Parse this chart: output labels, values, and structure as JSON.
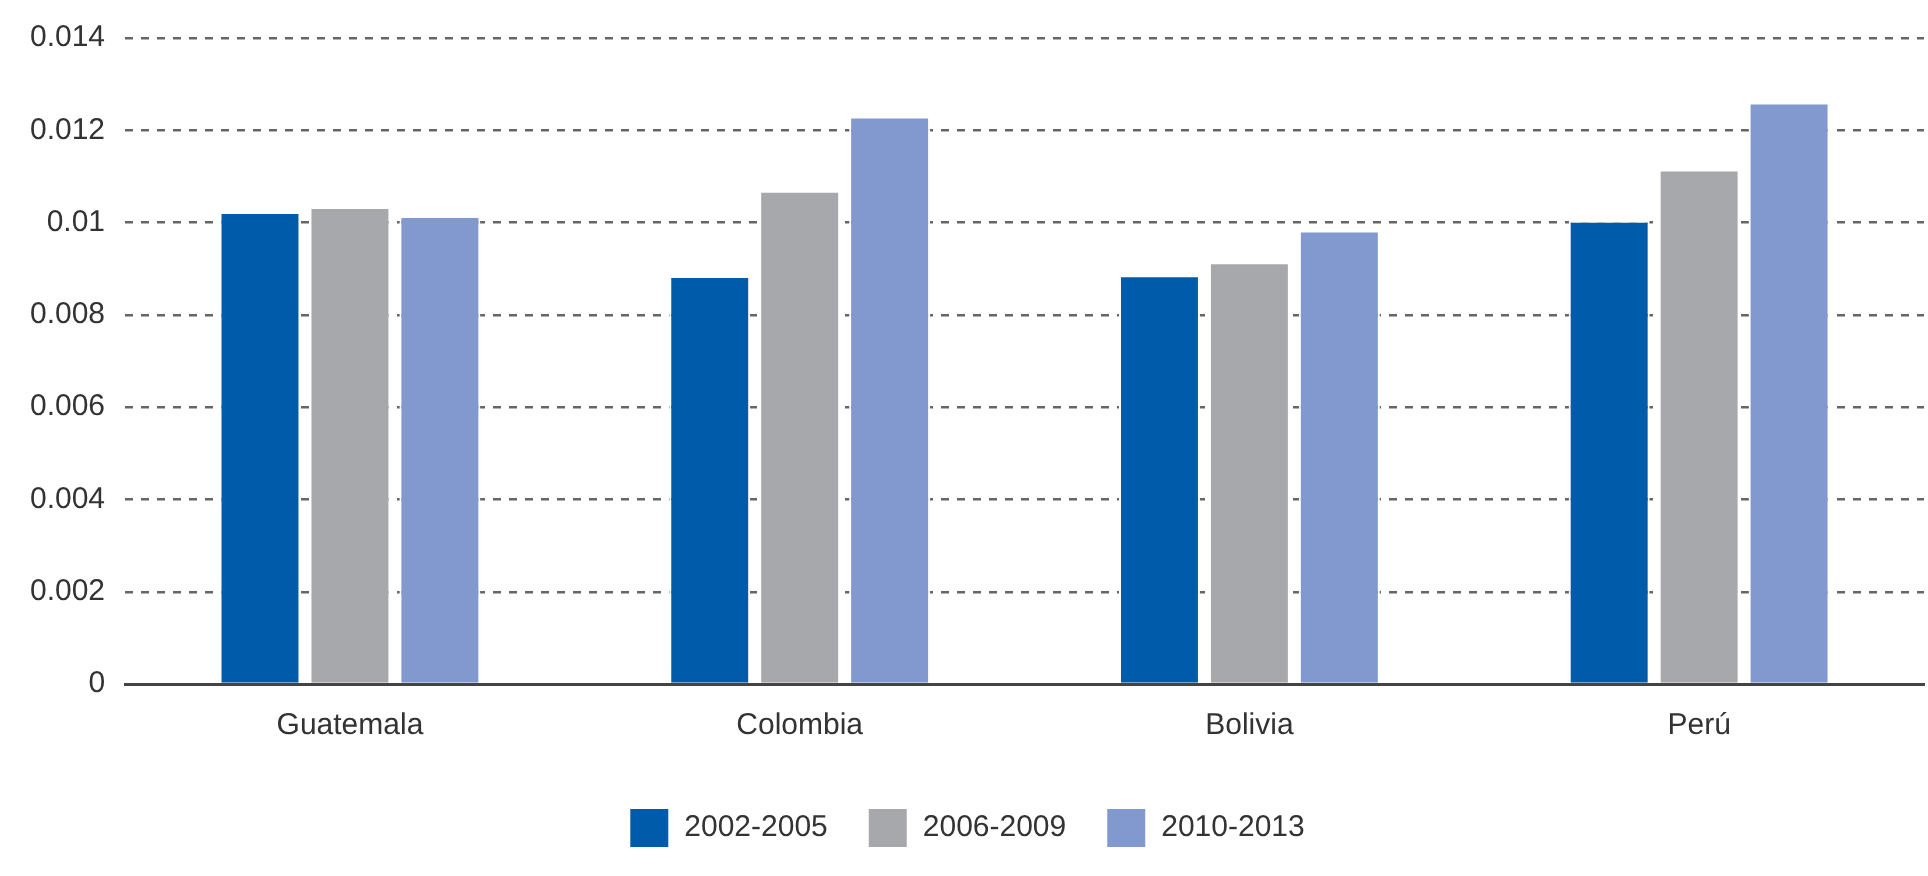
{
  "chart_data": {
    "type": "bar",
    "categories": [
      "Guatemala",
      "Colombia",
      "Bolivia",
      "Perú"
    ],
    "series": [
      {
        "name": "2002-2005",
        "color": "#005baa",
        "values": [
          0.01023,
          0.00884,
          0.00886,
          0.01004
        ]
      },
      {
        "name": "2006-2009",
        "color": "#a7a8ab",
        "values": [
          0.01034,
          0.01069,
          0.00914,
          0.01115
        ]
      },
      {
        "name": "2010-2013",
        "color": "#8299cf",
        "values": [
          0.01014,
          0.0123,
          0.00983,
          0.0126
        ]
      }
    ],
    "ylim": [
      0,
      0.014
    ],
    "yticks": [
      0,
      0.002,
      0.004,
      0.006,
      0.008,
      {
        "value": 0.01,
        "label": "0.01"
      },
      0.012,
      0.014
    ],
    "grid": "y",
    "legend": "bottom"
  }
}
